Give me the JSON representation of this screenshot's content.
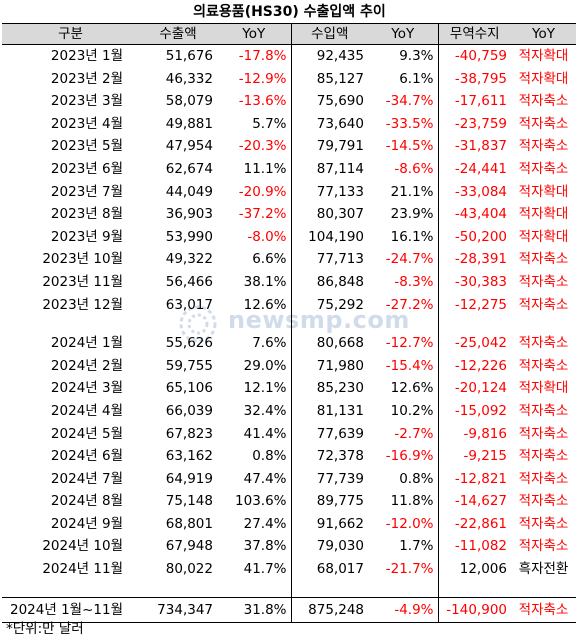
{
  "title": "의료용품(HS30) 수출입액 추이",
  "headers": [
    "구분",
    "수출액",
    "YoY",
    "수입액",
    "YoY",
    "무역수지",
    "YoY"
  ],
  "rows2023": [
    {
      "month": "2023년 1월",
      "exp": "51,676",
      "expYoy": "-17.8%",
      "imp": "92,435",
      "impYoy": "9.3%",
      "bal": "-40,759",
      "status": "적자확대"
    },
    {
      "month": "2023년 2월",
      "exp": "46,332",
      "expYoy": "-12.9%",
      "imp": "85,127",
      "impYoy": "6.1%",
      "bal": "-38,795",
      "status": "적자확대"
    },
    {
      "month": "2023년 3월",
      "exp": "58,079",
      "expYoy": "-13.6%",
      "imp": "75,690",
      "impYoy": "-34.7%",
      "bal": "-17,611",
      "status": "적자축소"
    },
    {
      "month": "2023년 4월",
      "exp": "49,881",
      "expYoy": "5.7%",
      "imp": "73,640",
      "impYoy": "-33.5%",
      "bal": "-23,759",
      "status": "적자축소"
    },
    {
      "month": "2023년 5월",
      "exp": "47,954",
      "expYoy": "-20.3%",
      "imp": "79,791",
      "impYoy": "-14.5%",
      "bal": "-31,837",
      "status": "적자축소"
    },
    {
      "month": "2023년 6월",
      "exp": "62,674",
      "expYoy": "11.1%",
      "imp": "87,114",
      "impYoy": "-8.6%",
      "bal": "-24,441",
      "status": "적자축소"
    },
    {
      "month": "2023년 7월",
      "exp": "44,049",
      "expYoy": "-20.9%",
      "imp": "77,133",
      "impYoy": "21.1%",
      "bal": "-33,084",
      "status": "적자확대"
    },
    {
      "month": "2023년 8월",
      "exp": "36,903",
      "expYoy": "-37.2%",
      "imp": "80,307",
      "impYoy": "23.9%",
      "bal": "-43,404",
      "status": "적자확대"
    },
    {
      "month": "2023년 9월",
      "exp": "53,990",
      "expYoy": "-8.0%",
      "imp": "104,190",
      "impYoy": "16.1%",
      "bal": "-50,200",
      "status": "적자확대"
    },
    {
      "month": "2023년 10월",
      "exp": "49,322",
      "expYoy": "6.6%",
      "imp": "77,713",
      "impYoy": "-24.7%",
      "bal": "-28,391",
      "status": "적자축소"
    },
    {
      "month": "2023년 11월",
      "exp": "56,466",
      "expYoy": "38.1%",
      "imp": "86,848",
      "impYoy": "-8.3%",
      "bal": "-30,383",
      "status": "적자축소"
    },
    {
      "month": "2023년 12월",
      "exp": "63,017",
      "expYoy": "12.6%",
      "imp": "75,292",
      "impYoy": "-27.2%",
      "bal": "-12,275",
      "status": "적자축소"
    }
  ],
  "rows2024": [
    {
      "month": "2024년 1월",
      "exp": "55,626",
      "expYoy": "7.6%",
      "imp": "80,668",
      "impYoy": "-12.7%",
      "bal": "-25,042",
      "status": "적자축소"
    },
    {
      "month": "2024년 2월",
      "exp": "59,755",
      "expYoy": "29.0%",
      "imp": "71,980",
      "impYoy": "-15.4%",
      "bal": "-12,226",
      "status": "적자축소"
    },
    {
      "month": "2024년 3월",
      "exp": "65,106",
      "expYoy": "12.1%",
      "imp": "85,230",
      "impYoy": "12.6%",
      "bal": "-20,124",
      "status": "적자확대"
    },
    {
      "month": "2024년 4월",
      "exp": "66,039",
      "expYoy": "32.4%",
      "imp": "81,131",
      "impYoy": "10.2%",
      "bal": "-15,092",
      "status": "적자축소"
    },
    {
      "month": "2024년 5월",
      "exp": "67,823",
      "expYoy": "41.4%",
      "imp": "77,639",
      "impYoy": "-2.7%",
      "bal": "-9,816",
      "status": "적자축소"
    },
    {
      "month": "2024년 6월",
      "exp": "63,162",
      "expYoy": "0.8%",
      "imp": "72,378",
      "impYoy": "-16.9%",
      "bal": "-9,215",
      "status": "적자축소"
    },
    {
      "month": "2024년 7월",
      "exp": "64,919",
      "expYoy": "47.4%",
      "imp": "77,739",
      "impYoy": "0.8%",
      "bal": "-12,821",
      "status": "적자축소"
    },
    {
      "month": "2024년 8월",
      "exp": "75,148",
      "expYoy": "103.6%",
      "imp": "89,775",
      "impYoy": "11.8%",
      "bal": "-14,627",
      "status": "적자축소"
    },
    {
      "month": "2024년 9월",
      "exp": "68,801",
      "expYoy": "27.4%",
      "imp": "91,662",
      "impYoy": "-12.0%",
      "bal": "-22,861",
      "status": "적자축소"
    },
    {
      "month": "2024년 10월",
      "exp": "67,948",
      "expYoy": "37.8%",
      "imp": "79,030",
      "impYoy": "1.7%",
      "bal": "-11,082",
      "status": "적자축소"
    },
    {
      "month": "2024년 11월",
      "exp": "80,022",
      "expYoy": "41.7%",
      "imp": "68,017",
      "impYoy": "-21.7%",
      "bal": "12,006",
      "status": "흑자전환"
    }
  ],
  "total": {
    "month": "2024년 1월~11월",
    "exp": "734,347",
    "expYoy": "31.8%",
    "imp": "875,248",
    "impYoy": "-4.9%",
    "bal": "-140,900",
    "status": "적자축소"
  },
  "note": "*단위:만 달러",
  "watermark": "newsmp.com",
  "colors": {
    "negative": "#ff0000",
    "header_bg": "#d9d9d9",
    "positive": "#000000"
  }
}
